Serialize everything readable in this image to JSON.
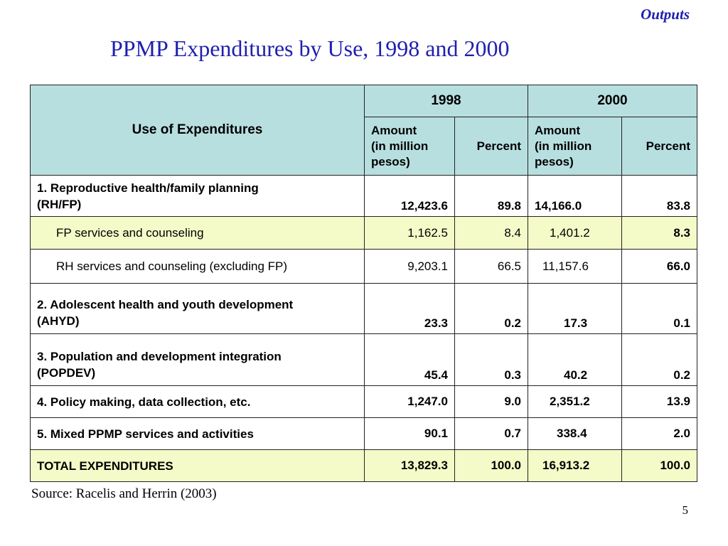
{
  "header": {
    "section_label": "Outputs",
    "title": "PPMP Expenditures by Use, 1998 and 2000"
  },
  "table": {
    "use_header": "Use of Expenditures",
    "years": [
      "1998",
      "2000"
    ],
    "sub_headers": {
      "amount_1998": "Amount\n(in million\npesos)",
      "percent_1998": "Percent",
      "amount_2000": "Amount\n(in million\npesos)",
      "percent_2000": "Percent"
    },
    "rows": [
      {
        "label": "1.  Reproductive health/family planning\n(RH/FP)",
        "amount_1998": "12,423.6",
        "percent_1998": "89.8",
        "amount_2000": "14,166.0",
        "percent_2000": "83.8"
      },
      {
        "label": "FP services and counseling",
        "amount_1998": "1,162.5",
        "percent_1998": "8.4",
        "amount_2000": "1,401.2",
        "percent_2000": "8.3"
      },
      {
        "label": "RH services and counseling (excluding FP)",
        "amount_1998": "9,203.1",
        "percent_1998": "66.5",
        "amount_2000": "11,157.6",
        "percent_2000": "66.0"
      },
      {
        "label": "2.  Adolescent health and youth development\n(AHYD)",
        "amount_1998": "23.3",
        "percent_1998": "0.2",
        "amount_2000": "17.3",
        "percent_2000": "0.1"
      },
      {
        "label": "3.  Population and development integration\n(POPDEV)",
        "amount_1998": "45.4",
        "percent_1998": "0.3",
        "amount_2000": "40.2",
        "percent_2000": "0.2"
      },
      {
        "label": "4. Policy making, data collection, etc.",
        "amount_1998": "1,247.0",
        "percent_1998": "9.0",
        "amount_2000": "2,351.2",
        "percent_2000": "13.9"
      },
      {
        "label": "5.  Mixed PPMP services and activities",
        "amount_1998": "90.1",
        "percent_1998": "0.7",
        "amount_2000": "338.4",
        "percent_2000": "2.0"
      },
      {
        "label": "TOTAL EXPENDITURES",
        "amount_1998": "13,829.3",
        "percent_1998": "100.0",
        "amount_2000": "16,913.2",
        "percent_2000": "100.0"
      }
    ]
  },
  "footer": {
    "source": "Source: Racelis and Herrin (2003)",
    "page_number": "5"
  },
  "colors": {
    "title": "#1f1fb0",
    "header_fill": "#b8dfe0",
    "highlight_fill": "#f5fbc8"
  }
}
